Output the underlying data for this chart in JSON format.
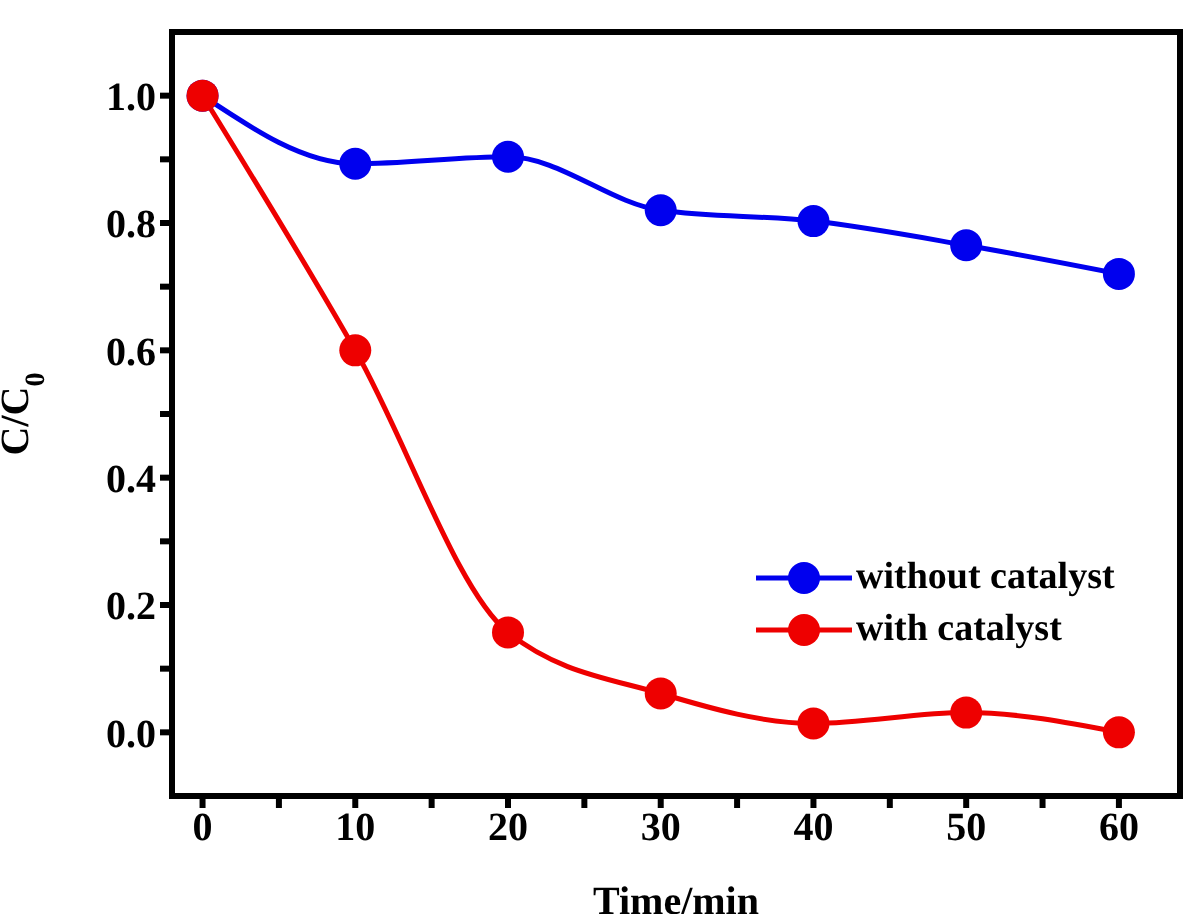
{
  "chart_data": {
    "type": "line",
    "xlabel": "Time/min",
    "ylabel": "C/C$_{0}$",
    "x": [
      0,
      10,
      20,
      30,
      40,
      50,
      60
    ],
    "series": [
      {
        "name": "without catalyst",
        "color": "#0000ee",
        "values": [
          1.0,
          0.893,
          0.904,
          0.82,
          0.803,
          0.765,
          0.72
        ]
      },
      {
        "name": "with catalyst",
        "color": "#ee0000",
        "values": [
          1.0,
          0.6,
          0.157,
          0.061,
          0.014,
          0.031,
          0.0
        ]
      }
    ],
    "xlim": [
      -2,
      64
    ],
    "xticks": [
      0,
      {
        "value": 5,
        "label": null
      },
      10,
      {
        "value": 15,
        "label": null
      },
      20,
      {
        "value": 25,
        "label": null
      },
      30,
      {
        "value": 35,
        "label": null
      },
      40,
      {
        "value": 45,
        "label": null
      },
      50,
      {
        "value": 55,
        "label": null
      },
      60
    ],
    "ylim": [
      -0.1,
      1.1
    ],
    "yticks": [
      {
        "value": 0,
        "label": "0.0"
      },
      {
        "value": 0.1,
        "label": null
      },
      0.2,
      {
        "value": 0.3,
        "label": null
      },
      0.4,
      {
        "value": 0.5,
        "label": null
      },
      0.6,
      {
        "value": 0.7,
        "label": null
      },
      0.8,
      {
        "value": 0.9,
        "label": null
      },
      {
        "value": 1,
        "label": "1.0"
      }
    ],
    "marker": "circle",
    "line_style": "solid",
    "grid": false,
    "legend": "bottom right"
  }
}
